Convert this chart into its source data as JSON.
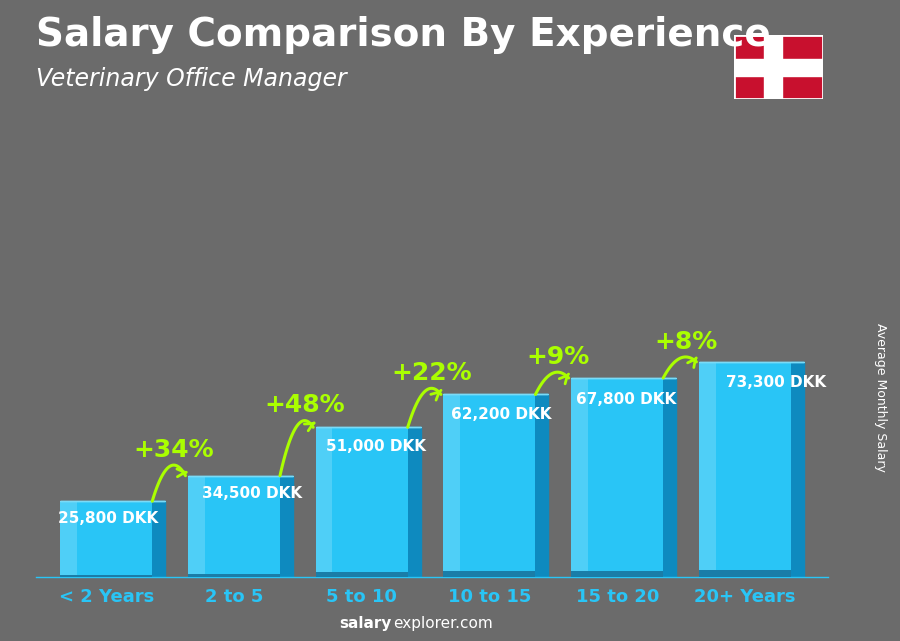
{
  "title": "Salary Comparison By Experience",
  "subtitle": "Veterinary Office Manager",
  "ylabel": "Average Monthly Salary",
  "categories": [
    "< 2 Years",
    "2 to 5",
    "5 to 10",
    "10 to 15",
    "15 to 20",
    "20+ Years"
  ],
  "values": [
    25800,
    34500,
    51000,
    62200,
    67800,
    73300
  ],
  "value_labels": [
    "25,800 DKK",
    "34,500 DKK",
    "51,000 DKK",
    "62,200 DKK",
    "67,800 DKK",
    "73,300 DKK"
  ],
  "pct_changes": [
    "+34%",
    "+48%",
    "+22%",
    "+9%",
    "+8%"
  ],
  "bar_front_color": "#29c5f6",
  "bar_side_color": "#0e8abf",
  "bar_top_color": "#7adbf7",
  "bar_shine_color": "#60d8f8",
  "bg_color": "#555555",
  "text_color": "#ffffff",
  "pct_color": "#aaff00",
  "label_color": "#ffffff",
  "title_fontsize": 28,
  "subtitle_fontsize": 17,
  "label_fontsize": 11,
  "pct_fontsize": 18,
  "xtick_fontsize": 13,
  "footer_fontsize": 11,
  "footer_bold": "salary",
  "footer_normal": "explorer.com",
  "ylabel_fontsize": 9
}
